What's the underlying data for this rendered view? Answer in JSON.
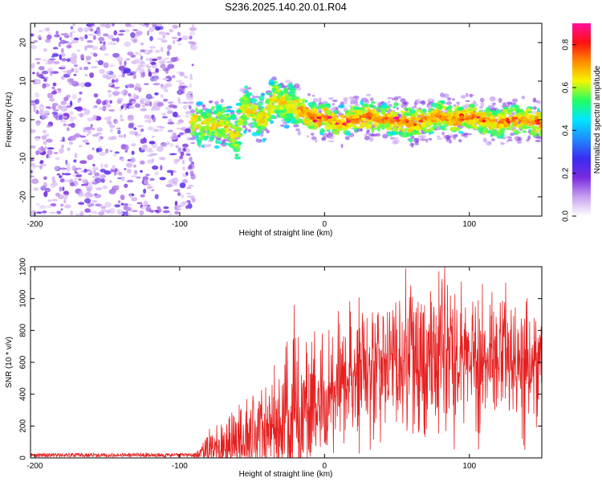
{
  "title": "S236.2025.140.20.01.R04",
  "colors": {
    "snr_line": "#e62020",
    "colormap": [
      "#ffffff",
      "#c9a0f0",
      "#7a2be0",
      "#3a2cf0",
      "#1f8cff",
      "#00e6ff",
      "#20ff60",
      "#f5f500",
      "#ff8c00",
      "#ff1010",
      "#ff10a0"
    ]
  },
  "chart_data": [
    {
      "type": "heatmap",
      "title": "S236.2025.140.20.01.R04",
      "xlabel": "Height of straight line (km)",
      "ylabel": "Frequency (Hz)",
      "xlim": [
        -203,
        150
      ],
      "ylim": [
        -25,
        25
      ],
      "xticks": [
        -200,
        -100,
        0,
        100
      ],
      "yticks": [
        -20,
        -10,
        0,
        10,
        20
      ],
      "colorbar": {
        "label": "Normalized spectral amplitude",
        "range": [
          0.0,
          0.9
        ],
        "ticks": [
          0.0,
          0.2,
          0.4,
          0.6,
          0.8
        ],
        "tick_labels": [
          "0.0",
          "0.2",
          "0.4",
          "0.6",
          "0.8"
        ]
      },
      "noise_region": {
        "x": [
          -203,
          -90
        ],
        "amplitude": [
          0.05,
          0.25
        ]
      },
      "signal_band": {
        "x": [
          -92,
          150
        ],
        "center_frequency": [
          {
            "x": -90,
            "f": 0
          },
          {
            "x": -85,
            "f": -1.5
          },
          {
            "x": -80,
            "f": -1
          },
          {
            "x": -75,
            "f": -1.5
          },
          {
            "x": -70,
            "f": -1
          },
          {
            "x": -65,
            "f": -3
          },
          {
            "x": -60,
            "f": -5
          },
          {
            "x": -58,
            "f": 1
          },
          {
            "x": -55,
            "f": 3
          },
          {
            "x": -50,
            "f": 2
          },
          {
            "x": -45,
            "f": 0
          },
          {
            "x": -40,
            "f": 1
          },
          {
            "x": -38,
            "f": 3
          },
          {
            "x": -35,
            "f": 6
          },
          {
            "x": -30,
            "f": 4
          },
          {
            "x": -25,
            "f": 4
          },
          {
            "x": -20,
            "f": 3
          },
          {
            "x": -15,
            "f": 2
          },
          {
            "x": -10,
            "f": 1
          },
          {
            "x": -5,
            "f": 0
          },
          {
            "x": 0,
            "f": 1
          },
          {
            "x": 5,
            "f": 0
          },
          {
            "x": 10,
            "f": -1
          },
          {
            "x": 20,
            "f": 0
          },
          {
            "x": 30,
            "f": 1
          },
          {
            "x": 40,
            "f": 0
          },
          {
            "x": 50,
            "f": 0
          },
          {
            "x": 60,
            "f": -1
          },
          {
            "x": 70,
            "f": 0
          },
          {
            "x": 80,
            "f": 1
          },
          {
            "x": 90,
            "f": 0
          },
          {
            "x": 100,
            "f": 1
          },
          {
            "x": 110,
            "f": 0
          },
          {
            "x": 120,
            "f": -1
          },
          {
            "x": 130,
            "f": 0
          },
          {
            "x": 140,
            "f": 0
          },
          {
            "x": 150,
            "f": -1
          }
        ],
        "peak_amplitude": 0.9
      }
    },
    {
      "type": "line",
      "xlabel": "Height of straight line (km)",
      "ylabel": "SNR (10 * v/v)",
      "xlim": [
        -203,
        150
      ],
      "ylim": [
        0,
        1200
      ],
      "xticks": [
        -200,
        -100,
        0,
        100
      ],
      "yticks": [
        0,
        200,
        400,
        600,
        800,
        1000,
        1200
      ],
      "envelope": [
        {
          "x": -203,
          "mean": 15,
          "max": 40
        },
        {
          "x": -90,
          "mean": 15,
          "max": 40
        },
        {
          "x": -75,
          "mean": 60,
          "max": 250
        },
        {
          "x": -50,
          "mean": 150,
          "max": 500
        },
        {
          "x": -30,
          "mean": 200,
          "max": 620
        },
        {
          "x": -20,
          "mean": 260,
          "max": 960
        },
        {
          "x": -10,
          "mean": 350,
          "max": 800
        },
        {
          "x": 0,
          "mean": 430,
          "max": 950
        },
        {
          "x": 20,
          "mean": 530,
          "max": 1000
        },
        {
          "x": 40,
          "mean": 600,
          "max": 1080
        },
        {
          "x": 55,
          "mean": 640,
          "max": 1190
        },
        {
          "x": 80,
          "mean": 640,
          "max": 1200
        },
        {
          "x": 110,
          "mean": 620,
          "max": 1100
        },
        {
          "x": 150,
          "mean": 600,
          "max": 1050
        }
      ],
      "peaks": [
        {
          "x": -21,
          "y": 960
        },
        {
          "x": 56,
          "y": 1190
        },
        {
          "x": 83,
          "y": 1200
        },
        {
          "x": 125,
          "y": 1100
        }
      ]
    }
  ]
}
